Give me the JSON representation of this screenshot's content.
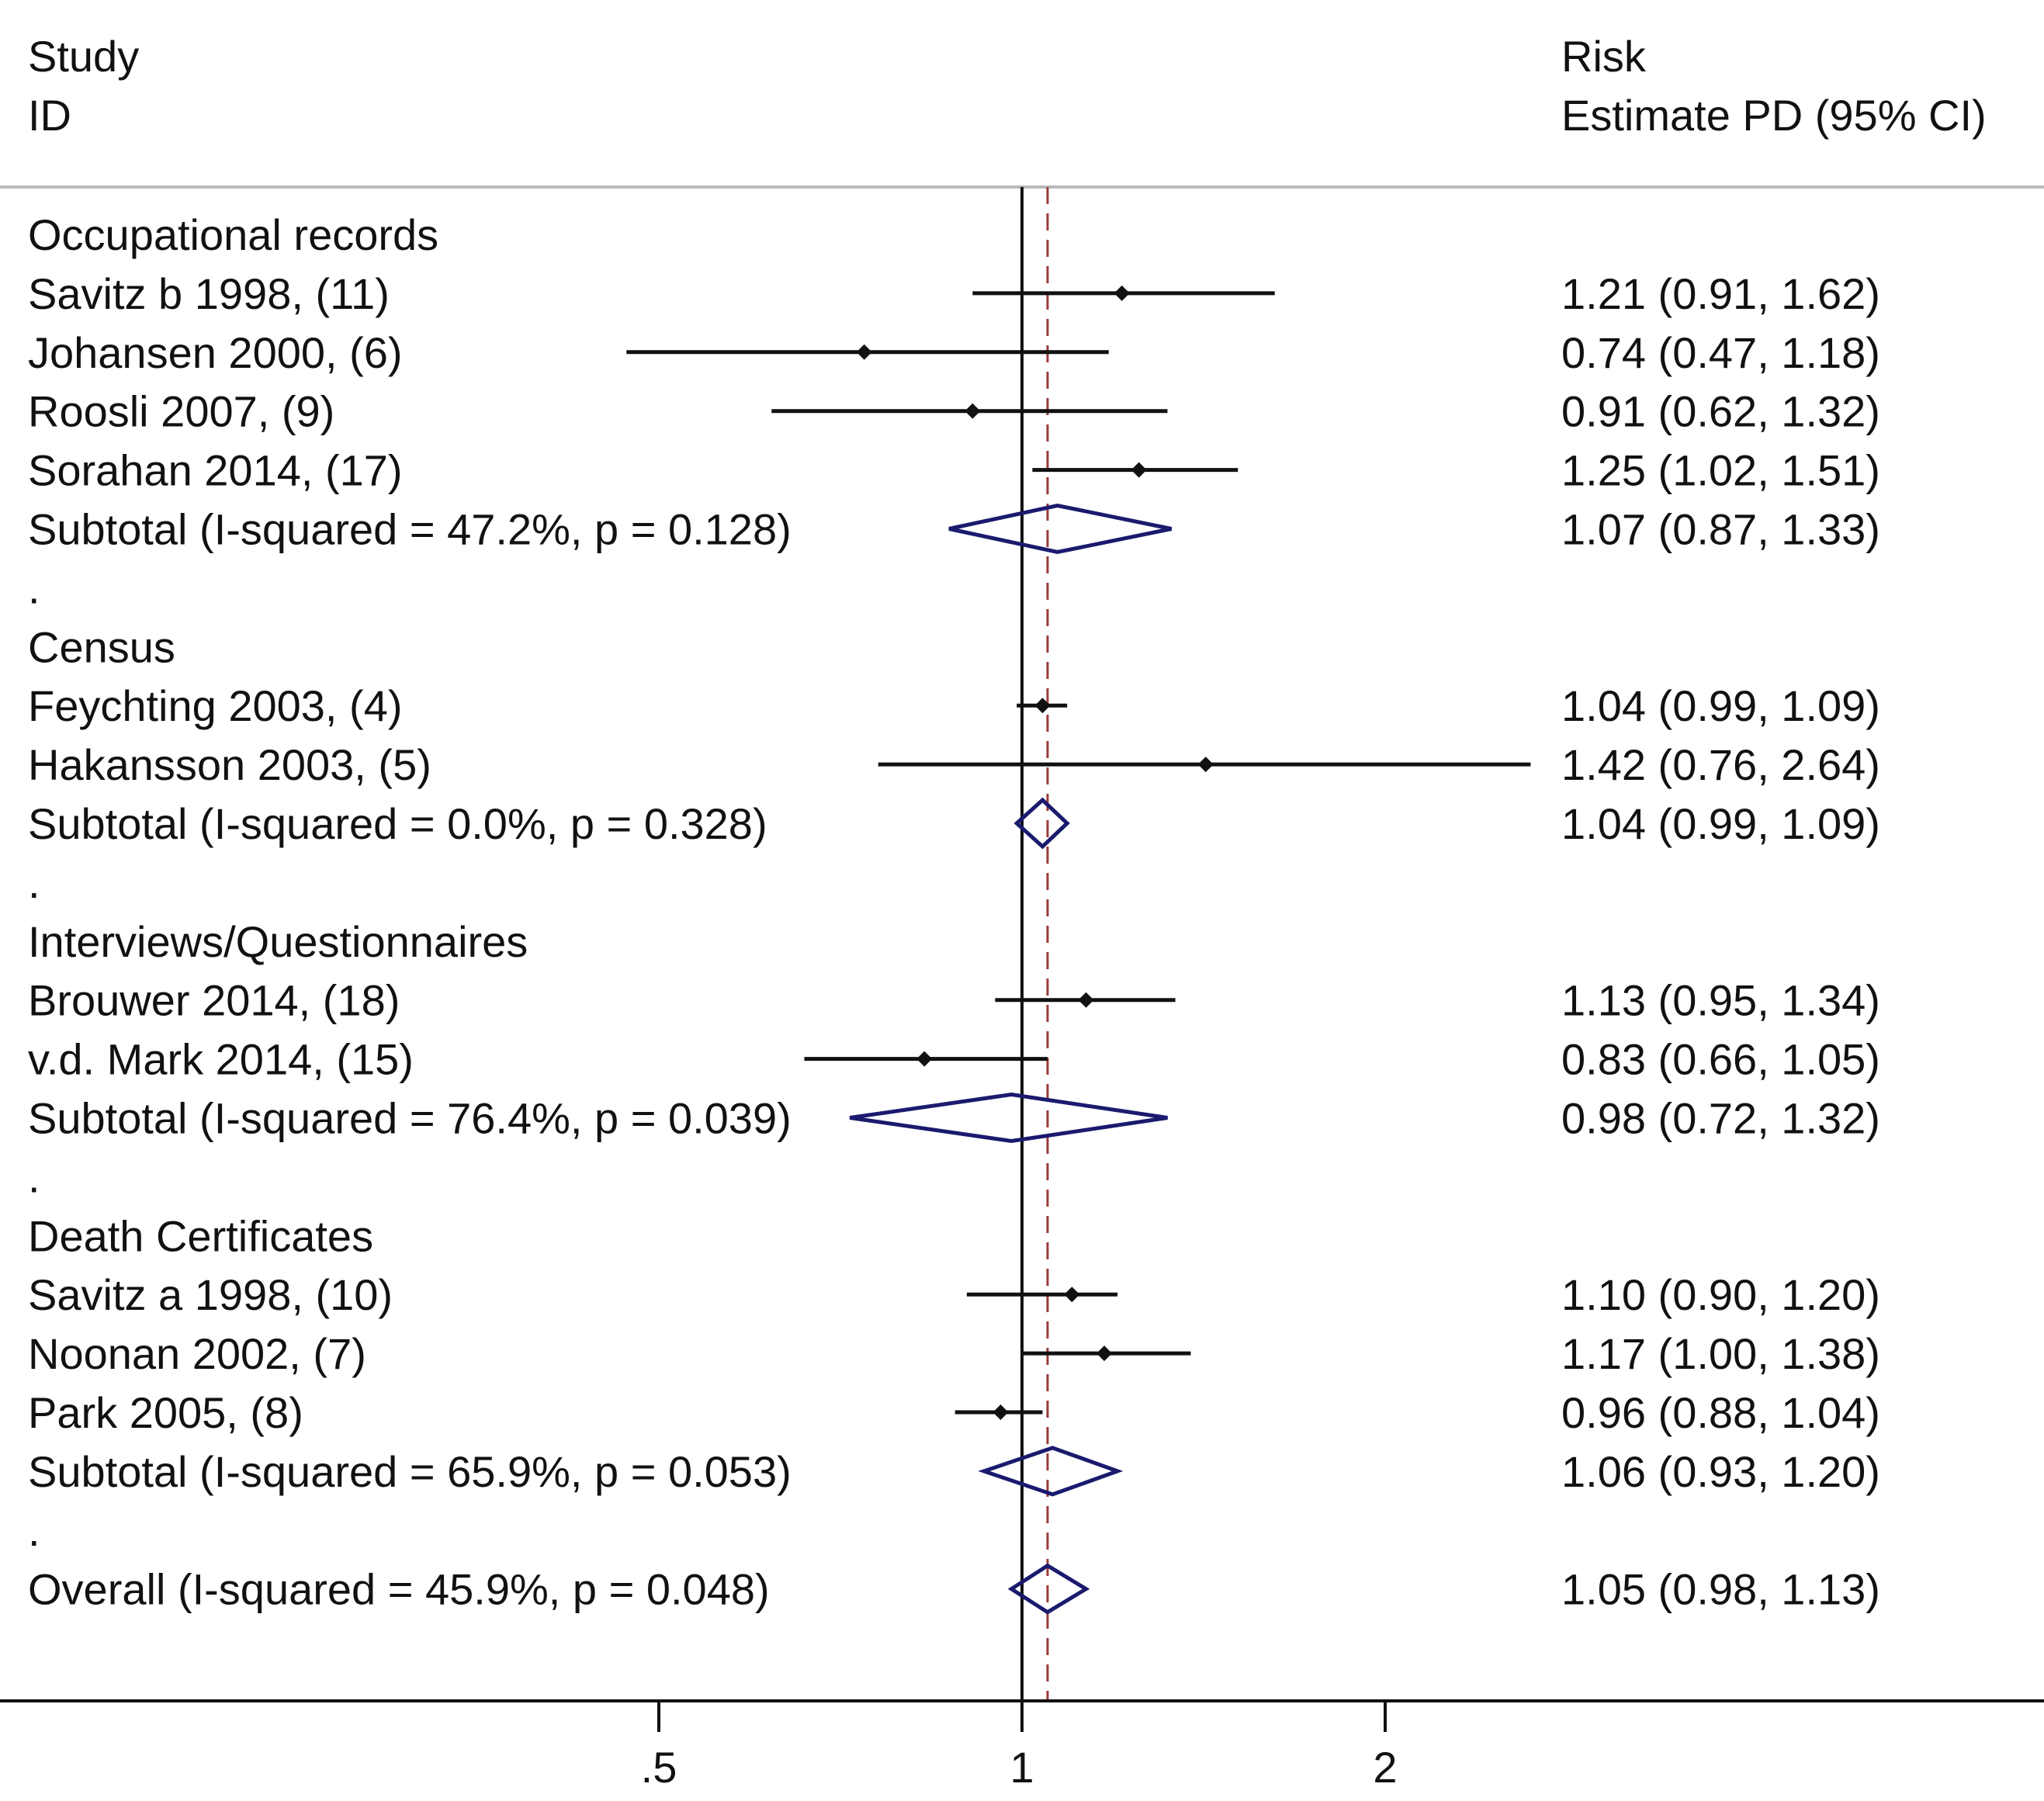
{
  "header": {
    "study_line1": "Study",
    "study_line2": "ID",
    "est_line1": "Risk",
    "est_line2": "Estimate PD (95% CI)"
  },
  "colors": {
    "ink": "#111111",
    "diamond": "#1a1a6e",
    "reference_line": "#9b3b3b",
    "rule": "#bbbbbb"
  },
  "chart_data": {
    "type": "forest",
    "x_scale": "log",
    "xlim": [
      0.365,
      4.0
    ],
    "null_value": 1,
    "overall_estimate_line": 1.05,
    "x_ticks": [
      {
        "value": 0.5,
        "label": ".5"
      },
      {
        "value": 1,
        "label": "1"
      },
      {
        "value": 2,
        "label": "2"
      }
    ],
    "rows": [
      {
        "kind": "group",
        "label": "Occupational records"
      },
      {
        "kind": "study",
        "label": "Savitz b 1998, (11)",
        "est": 1.21,
        "lo": 0.91,
        "hi": 1.62,
        "ci_text": "1.21 (0.91, 1.62)"
      },
      {
        "kind": "study",
        "label": "Johansen 2000, (6)",
        "est": 0.74,
        "lo": 0.47,
        "hi": 1.18,
        "ci_text": "0.74 (0.47, 1.18)"
      },
      {
        "kind": "study",
        "label": "Roosli 2007, (9)",
        "est": 0.91,
        "lo": 0.62,
        "hi": 1.32,
        "ci_text": "0.91 (0.62, 1.32)"
      },
      {
        "kind": "study",
        "label": "Sorahan 2014, (17)",
        "est": 1.25,
        "lo": 1.02,
        "hi": 1.51,
        "ci_text": "1.25 (1.02, 1.51)"
      },
      {
        "kind": "subtotal",
        "label": "Subtotal  (I-squared = 47.2%, p = 0.128)",
        "est": 1.07,
        "lo": 0.87,
        "hi": 1.33,
        "ci_text": "1.07 (0.87, 1.33)"
      },
      {
        "kind": "spacer",
        "label": "."
      },
      {
        "kind": "group",
        "label": "Census"
      },
      {
        "kind": "study",
        "label": "Feychting 2003, (4)",
        "est": 1.04,
        "lo": 0.99,
        "hi": 1.09,
        "ci_text": "1.04 (0.99, 1.09)"
      },
      {
        "kind": "study",
        "label": "Hakansson 2003, (5)",
        "est": 1.42,
        "lo": 0.76,
        "hi": 2.64,
        "ci_text": "1.42 (0.76, 2.64)"
      },
      {
        "kind": "subtotal",
        "label": "Subtotal  (I-squared = 0.0%, p = 0.328)",
        "est": 1.04,
        "lo": 0.99,
        "hi": 1.09,
        "ci_text": "1.04 (0.99, 1.09)"
      },
      {
        "kind": "spacer",
        "label": "."
      },
      {
        "kind": "group",
        "label": "Interviews/Questionnaires"
      },
      {
        "kind": "study",
        "label": "Brouwer 2014, (18)",
        "est": 1.13,
        "lo": 0.95,
        "hi": 1.34,
        "ci_text": "1.13 (0.95, 1.34)"
      },
      {
        "kind": "study",
        "label": "v.d. Mark 2014, (15)",
        "est": 0.83,
        "lo": 0.66,
        "hi": 1.05,
        "ci_text": "0.83 (0.66, 1.05)"
      },
      {
        "kind": "subtotal",
        "label": "Subtotal  (I-squared = 76.4%, p = 0.039)",
        "est": 0.98,
        "lo": 0.72,
        "hi": 1.32,
        "ci_text": "0.98 (0.72, 1.32)"
      },
      {
        "kind": "spacer",
        "label": "."
      },
      {
        "kind": "group",
        "label": "Death Certificates"
      },
      {
        "kind": "study",
        "label": "Savitz a 1998, (10)",
        "est": 1.1,
        "lo": 0.9,
        "hi": 1.2,
        "ci_text": "1.10 (0.90, 1.20)"
      },
      {
        "kind": "study",
        "label": "Noonan 2002, (7)",
        "est": 1.17,
        "lo": 1.0,
        "hi": 1.38,
        "ci_text": "1.17 (1.00, 1.38)"
      },
      {
        "kind": "study",
        "label": "Park 2005, (8)",
        "est": 0.96,
        "lo": 0.88,
        "hi": 1.04,
        "ci_text": "0.96 (0.88, 1.04)"
      },
      {
        "kind": "subtotal",
        "label": "Subtotal  (I-squared = 65.9%, p = 0.053)",
        "est": 1.06,
        "lo": 0.93,
        "hi": 1.2,
        "ci_text": "1.06 (0.93, 1.20)"
      },
      {
        "kind": "spacer",
        "label": "."
      },
      {
        "kind": "overall",
        "label": "Overall  (I-squared = 45.9%, p = 0.048)",
        "est": 1.05,
        "lo": 0.98,
        "hi": 1.13,
        "ci_text": "1.05 (0.98, 1.13)"
      }
    ]
  }
}
